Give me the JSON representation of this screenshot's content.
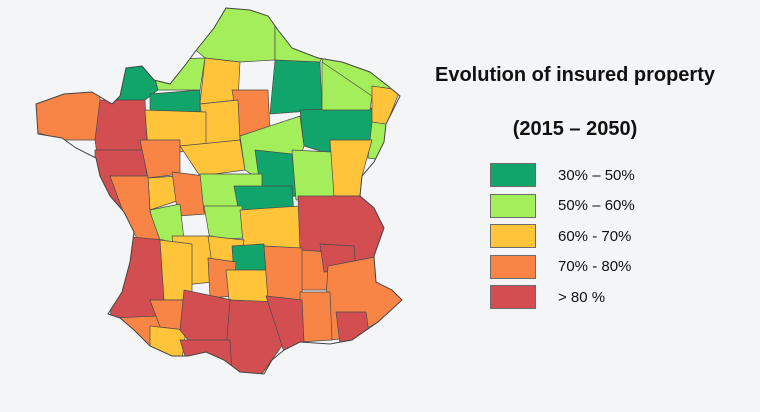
{
  "title_line1": "Evolution of insured property",
  "title_line2": "(2015 – 2050)",
  "colors": {
    "c1": "#12a56b",
    "c2": "#a4ee5c",
    "c3": "#ffc43a",
    "c4": "#f88545",
    "c5": "#d24e50"
  },
  "legend": [
    {
      "label": "30% – 50%",
      "color": "#12a56b"
    },
    {
      "label": "50% – 60%",
      "color": "#a4ee5c"
    },
    {
      "label": "60% - 70%",
      "color": "#ffc43a"
    },
    {
      "label": "70% - 80%",
      "color": "#f88545"
    },
    {
      "label": "> 80 %",
      "color": "#d24e50"
    }
  ]
}
